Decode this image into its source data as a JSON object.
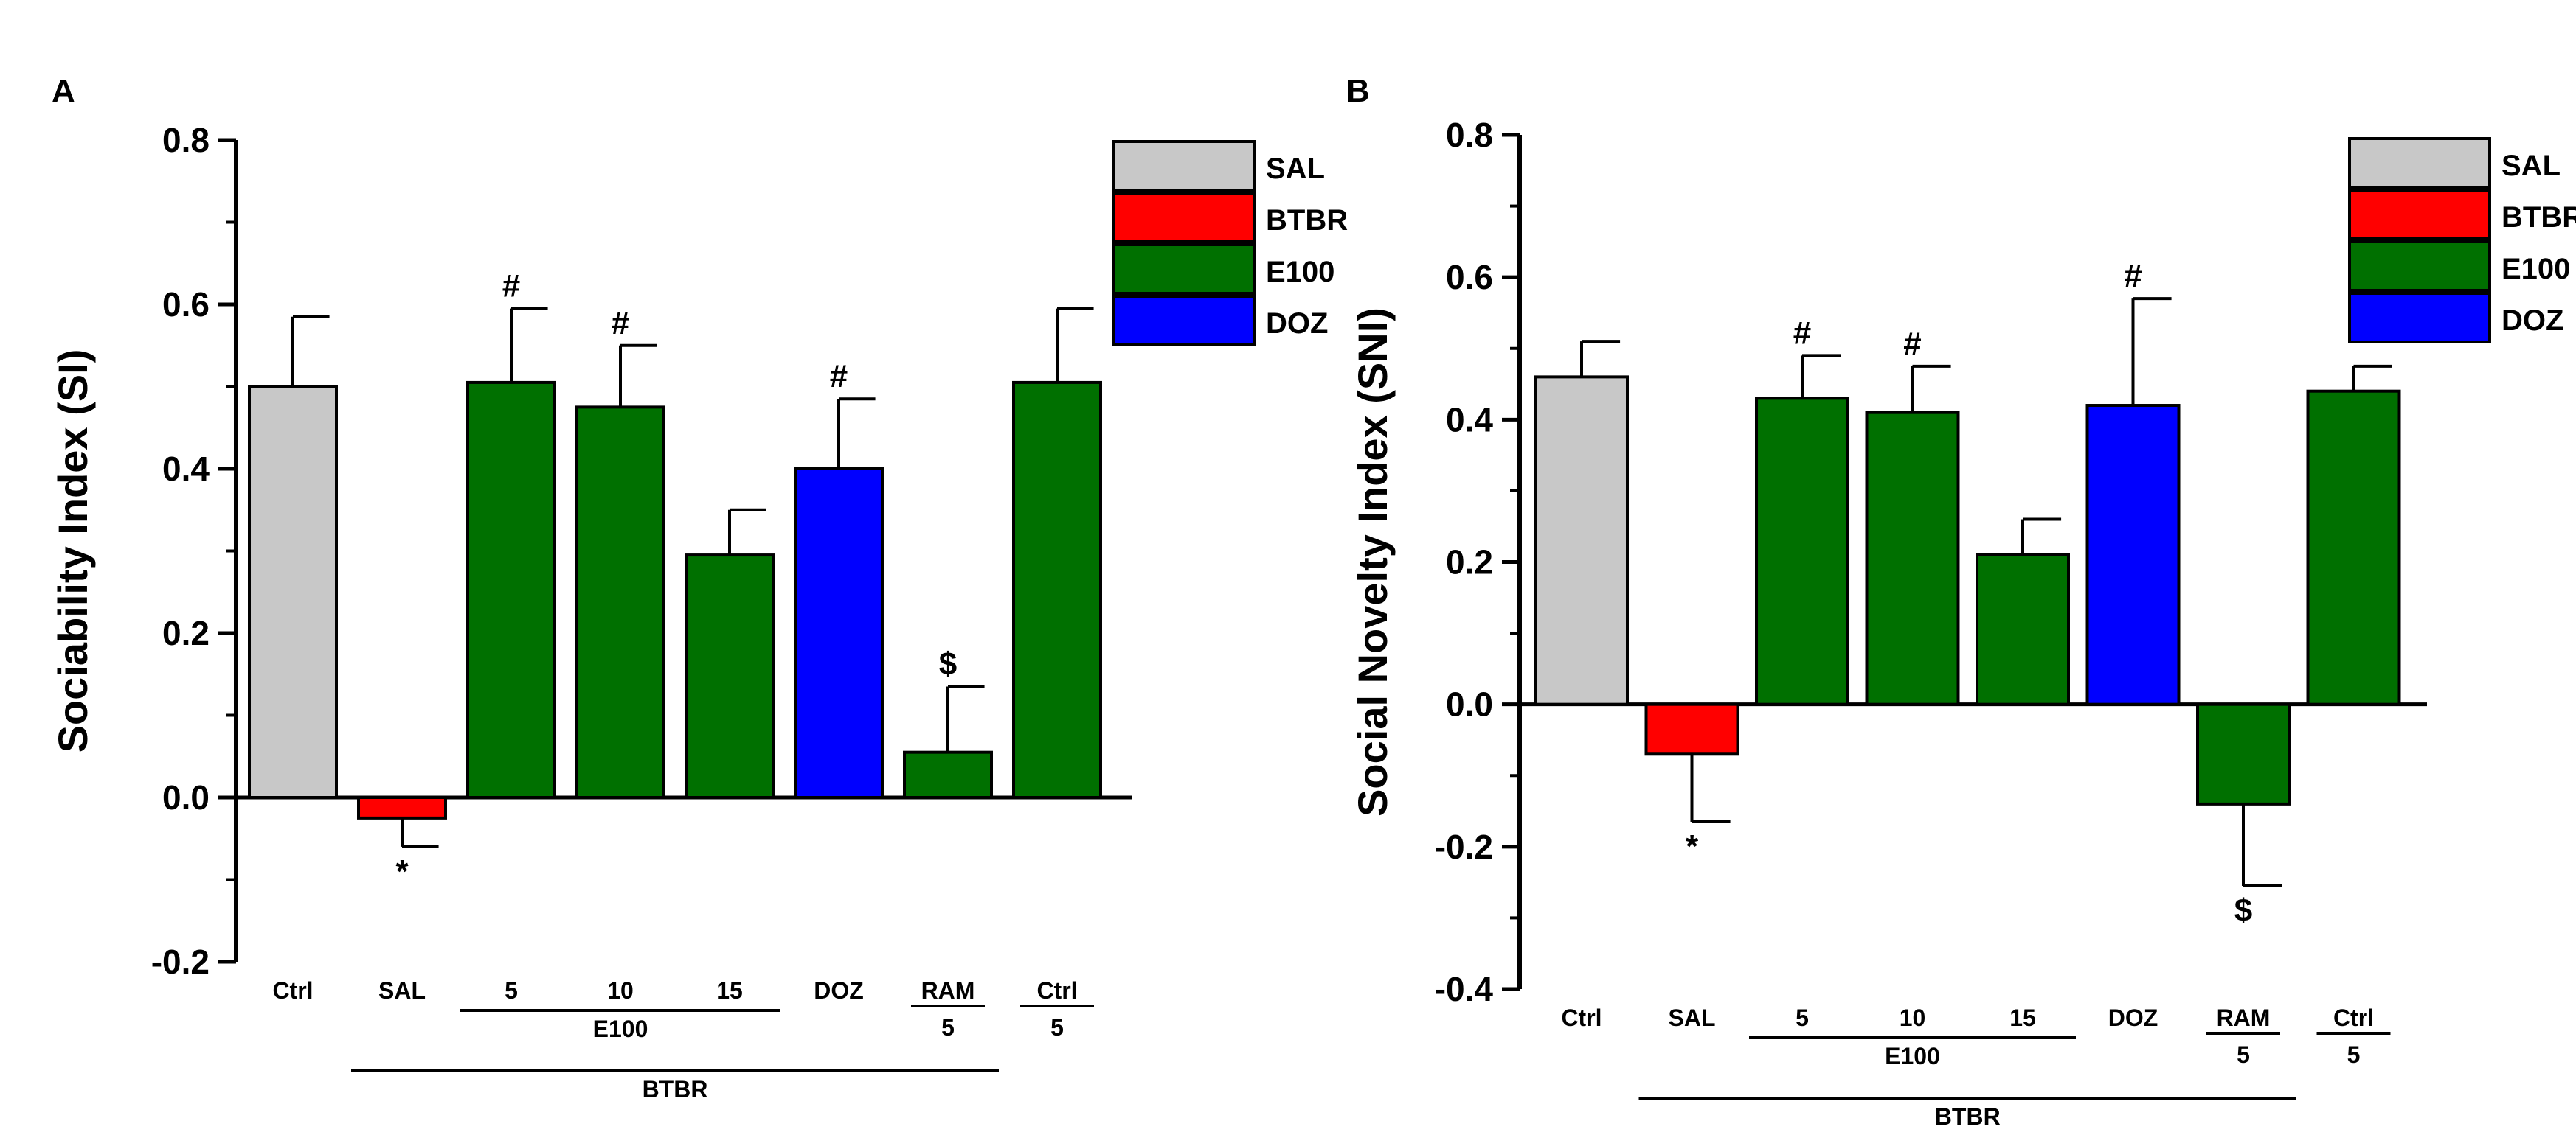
{
  "colors": {
    "SAL": "#c8c8c8",
    "BTBR": "#ff0000",
    "E100": "#007000",
    "DOZ": "#0000ff"
  },
  "chart_data": [
    {
      "panel": "A",
      "type": "bar",
      "title": "",
      "ylabel": "Sociability Index (SI)",
      "xlabel": "",
      "ylim": [
        -0.2,
        0.8
      ],
      "yticks": [
        "-0.2",
        "0.0",
        "0.2",
        "0.4",
        "0.6",
        "0.8"
      ],
      "categories": [
        "Ctrl",
        "SAL",
        "5",
        "10",
        "15",
        "DOZ",
        "RAM",
        "Ctrl"
      ],
      "sublabels": [
        "",
        "",
        "",
        "",
        "",
        "",
        "5",
        "5"
      ],
      "values": [
        0.5,
        -0.025,
        0.505,
        0.475,
        0.295,
        0.4,
        0.055,
        0.505
      ],
      "errors": [
        0.085,
        0.035,
        0.09,
        0.075,
        0.055,
        0.085,
        0.08,
        0.09
      ],
      "bar_groups": [
        "SAL",
        "BTBR",
        "E100",
        "E100",
        "E100",
        "DOZ",
        "E100",
        "E100"
      ],
      "annotations": [
        "",
        "*",
        "#",
        "#",
        "",
        "#",
        "$",
        ""
      ],
      "group_labels": [
        {
          "text": "E100",
          "from": 2,
          "to": 4
        },
        {
          "text": "BTBR",
          "from": 1,
          "to": 6
        }
      ],
      "legend": [
        "SAL",
        "BTBR",
        "E100",
        "DOZ"
      ],
      "legend_position": "top-right"
    },
    {
      "panel": "B",
      "type": "bar",
      "title": "",
      "ylabel": "Social Novelty Index (SNI)",
      "xlabel": "",
      "ylim": [
        -0.4,
        0.8
      ],
      "yticks": [
        "-0.4",
        "-0.2",
        "0.0",
        "0.2",
        "0.4",
        "0.6",
        "0.8"
      ],
      "categories": [
        "Ctrl",
        "SAL",
        "5",
        "10",
        "15",
        "DOZ",
        "RAM",
        "Ctrl"
      ],
      "sublabels": [
        "",
        "",
        "",
        "",
        "",
        "",
        "5",
        "5"
      ],
      "values": [
        0.46,
        -0.07,
        0.43,
        0.41,
        0.21,
        0.42,
        -0.14,
        0.44
      ],
      "errors": [
        0.05,
        0.095,
        0.06,
        0.065,
        0.05,
        0.15,
        0.115,
        0.035
      ],
      "bar_groups": [
        "SAL",
        "BTBR",
        "E100",
        "E100",
        "E100",
        "DOZ",
        "E100",
        "E100"
      ],
      "annotations": [
        "",
        "*",
        "#",
        "#",
        "",
        "#",
        "$",
        ""
      ],
      "group_labels": [
        {
          "text": "E100",
          "from": 2,
          "to": 4
        },
        {
          "text": "BTBR",
          "from": 1,
          "to": 6
        }
      ],
      "legend": [
        "SAL",
        "BTBR",
        "E100",
        "DOZ"
      ],
      "legend_position": "top-right"
    }
  ]
}
